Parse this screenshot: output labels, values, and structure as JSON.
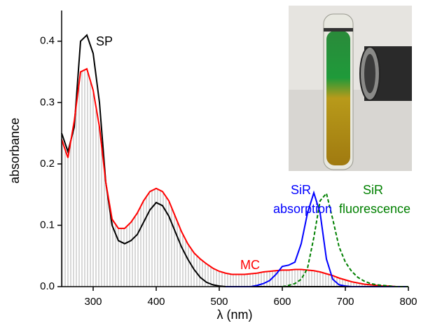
{
  "chart_data": {
    "type": "line",
    "x_label": "λ (nm)",
    "y_label": "absorbance",
    "x": [
      250,
      260,
      270,
      280,
      290,
      300,
      310,
      320,
      330,
      340,
      350,
      360,
      370,
      380,
      390,
      400,
      410,
      420,
      430,
      440,
      450,
      460,
      470,
      480,
      490,
      500,
      510,
      520,
      530,
      540,
      550,
      560,
      570,
      580,
      590,
      600,
      610,
      620,
      630,
      640,
      650,
      660,
      670,
      680,
      690,
      700,
      710,
      720,
      730,
      740,
      750,
      760,
      770,
      780,
      790,
      800
    ],
    "series": [
      {
        "name": "SP",
        "color": "#000000",
        "values": [
          0.25,
          0.22,
          0.26,
          0.4,
          0.41,
          0.38,
          0.3,
          0.17,
          0.1,
          0.075,
          0.07,
          0.075,
          0.085,
          0.105,
          0.125,
          0.137,
          0.132,
          0.115,
          0.09,
          0.065,
          0.045,
          0.028,
          0.015,
          0.007,
          0.003,
          0.001,
          0,
          0,
          0,
          0,
          0,
          0,
          0,
          0,
          0,
          0,
          0,
          0,
          0,
          0,
          0,
          0,
          0,
          0,
          0,
          0,
          0,
          0,
          0,
          0,
          0,
          0,
          0,
          0,
          0,
          0
        ]
      },
      {
        "name": "MC",
        "color": "#ff0000",
        "hatched": true,
        "values": [
          0.24,
          0.21,
          0.27,
          0.35,
          0.355,
          0.32,
          0.26,
          0.17,
          0.11,
          0.095,
          0.095,
          0.105,
          0.12,
          0.14,
          0.155,
          0.16,
          0.155,
          0.14,
          0.115,
          0.09,
          0.07,
          0.055,
          0.045,
          0.037,
          0.03,
          0.025,
          0.022,
          0.02,
          0.02,
          0.02,
          0.021,
          0.022,
          0.024,
          0.025,
          0.026,
          0.027,
          0.027,
          0.028,
          0.028,
          0.027,
          0.026,
          0.024,
          0.021,
          0.018,
          0.014,
          0.011,
          0.008,
          0.006,
          0.004,
          0.003,
          0.002,
          0.001,
          0.001,
          0,
          0,
          0
        ]
      },
      {
        "name": "SiR absorption",
        "color": "#0000ff",
        "values": [
          null,
          null,
          null,
          null,
          null,
          null,
          null,
          null,
          null,
          null,
          null,
          null,
          null,
          null,
          null,
          null,
          null,
          null,
          null,
          null,
          null,
          null,
          null,
          null,
          null,
          null,
          0,
          0,
          0,
          0,
          0,
          0.002,
          0.005,
          0.01,
          0.02,
          0.033,
          0.035,
          0.04,
          0.07,
          0.12,
          0.153,
          0.12,
          0.045,
          0.012,
          0.003,
          0.001,
          0,
          0,
          0,
          0,
          0,
          0,
          0,
          0,
          0,
          0
        ]
      },
      {
        "name": "SiR fluorescence",
        "color": "#008000",
        "dashed": true,
        "values": [
          null,
          null,
          null,
          null,
          null,
          null,
          null,
          null,
          null,
          null,
          null,
          null,
          null,
          null,
          null,
          null,
          null,
          null,
          null,
          null,
          null,
          null,
          null,
          null,
          null,
          null,
          null,
          null,
          null,
          null,
          null,
          null,
          null,
          null,
          null,
          0,
          0.002,
          0.005,
          0.012,
          0.03,
          0.08,
          0.14,
          0.152,
          0.11,
          0.065,
          0.04,
          0.025,
          0.015,
          0.009,
          0.005,
          0.003,
          0.002,
          0.001,
          0,
          0,
          0
        ]
      }
    ],
    "xlim": [
      250,
      800
    ],
    "xticks": [
      300,
      400,
      500,
      600,
      700,
      800
    ],
    "ylim": [
      0,
      0.45
    ],
    "yticks": [
      {
        "value": 0,
        "label": "0.0"
      },
      0.1,
      0.2,
      0.3,
      0.4
    ]
  }
}
